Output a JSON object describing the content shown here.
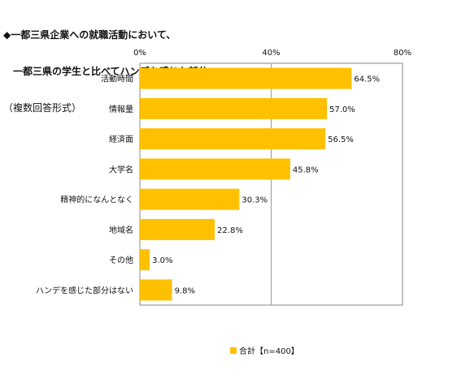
{
  "header": {
    "line1": "◆一都三県企業への就職活動において、",
    "line2": "一都三県の学生と比べてハンデを感じた部分",
    "line3": "（複数回答形式）"
  },
  "chart_data": {
    "type": "bar",
    "orientation": "horizontal",
    "categories": [
      "活動時間",
      "情報量",
      "経済面",
      "大学名",
      "精神的になんとなく",
      "地域名",
      "その他",
      "ハンデを感じた部分はない"
    ],
    "values": [
      64.5,
      57.0,
      56.5,
      45.8,
      30.3,
      22.8,
      3.0,
      9.8
    ],
    "value_labels": [
      "64.5%",
      "57.0%",
      "56.5%",
      "45.8%",
      "30.3%",
      "22.8%",
      "3.0%",
      "9.8%"
    ],
    "xlim": [
      0,
      80
    ],
    "ticks": [
      0,
      40,
      80
    ],
    "tick_labels": [
      "0%",
      "40%",
      "80%"
    ],
    "grid": true,
    "series": [
      {
        "name": "合計【n=400】",
        "color": "#FFC000"
      }
    ],
    "legend_position": "bottom"
  }
}
